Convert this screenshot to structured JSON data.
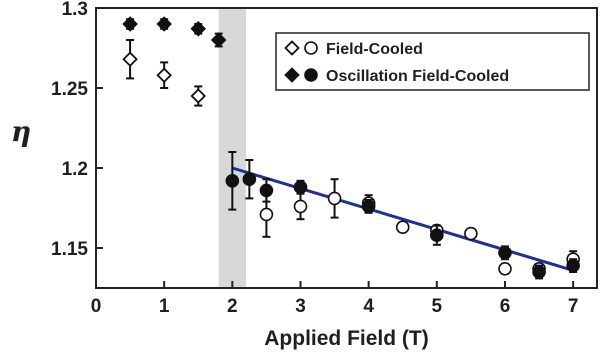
{
  "chart_data": {
    "type": "scatter",
    "xlabel": "Applied Field (T)",
    "ylabel": "η",
    "xlim": [
      0,
      7.35
    ],
    "ylim": [
      1.125,
      1.3
    ],
    "xticks": [
      0,
      1,
      2,
      3,
      4,
      5,
      6,
      7
    ],
    "yticks": [
      1.15,
      1.2,
      1.25,
      1.3
    ],
    "ytick_labels": [
      "1.15",
      "1.2",
      "1.25",
      "1.3"
    ],
    "xtick_labels": [
      "0",
      "1",
      "2",
      "3",
      "4",
      "5",
      "6",
      "7"
    ],
    "grid": false,
    "legend_position": "top-right",
    "shaded_band": {
      "x": [
        1.8,
        2.2
      ],
      "color": "#d8d8d8"
    },
    "fit_line": {
      "x": [
        2.0,
        7.0
      ],
      "y": [
        1.2,
        1.136
      ],
      "color": "#1c2f9e"
    },
    "series": [
      {
        "name": "Field-Cooled",
        "label": "Field-Cooled",
        "markers": [
          "open-diamond",
          "open-circle"
        ],
        "points": [
          {
            "x": 0.5,
            "y": 1.268,
            "err": 0.012,
            "marker": "open-diamond"
          },
          {
            "x": 1.0,
            "y": 1.258,
            "err": 0.008,
            "marker": "open-diamond"
          },
          {
            "x": 1.5,
            "y": 1.245,
            "err": 0.006,
            "marker": "open-diamond"
          },
          {
            "x": 2.5,
            "y": 1.171,
            "err": 0.014,
            "marker": "open-circle"
          },
          {
            "x": 3.0,
            "y": 1.176,
            "err": 0.008,
            "marker": "open-circle"
          },
          {
            "x": 3.5,
            "y": 1.181,
            "err": 0.012,
            "marker": "open-circle"
          },
          {
            "x": 4.0,
            "y": 1.178,
            "err": 0.005,
            "marker": "open-circle"
          },
          {
            "x": 4.5,
            "y": 1.163,
            "err": 0.003,
            "marker": "open-circle"
          },
          {
            "x": 5.0,
            "y": 1.161,
            "err": 0.003,
            "marker": "open-circle"
          },
          {
            "x": 5.5,
            "y": 1.159,
            "err": 0.002,
            "marker": "open-circle"
          },
          {
            "x": 6.0,
            "y": 1.137,
            "err": 0.003,
            "marker": "open-circle"
          },
          {
            "x": 6.5,
            "y": 1.137,
            "err": 0.003,
            "marker": "open-circle"
          },
          {
            "x": 7.0,
            "y": 1.143,
            "err": 0.005,
            "marker": "open-circle"
          }
        ]
      },
      {
        "name": "Oscillation Field-Cooled",
        "label": "Oscillation Field-Cooled",
        "markers": [
          "filled-diamond",
          "filled-circle"
        ],
        "points": [
          {
            "x": 0.5,
            "y": 1.29,
            "err": 0.003,
            "marker": "filled-diamond"
          },
          {
            "x": 1.0,
            "y": 1.29,
            "err": 0.003,
            "marker": "filled-diamond"
          },
          {
            "x": 1.5,
            "y": 1.287,
            "err": 0.003,
            "marker": "filled-diamond"
          },
          {
            "x": 1.8,
            "y": 1.28,
            "err": 0.004,
            "marker": "filled-diamond"
          },
          {
            "x": 2.0,
            "y": 1.192,
            "err": 0.018,
            "marker": "filled-circle"
          },
          {
            "x": 2.25,
            "y": 1.193,
            "err": 0.012,
            "marker": "filled-circle"
          },
          {
            "x": 2.5,
            "y": 1.186,
            "err": 0.007,
            "marker": "filled-circle"
          },
          {
            "x": 3.0,
            "y": 1.188,
            "err": 0.004,
            "marker": "filled-circle"
          },
          {
            "x": 4.0,
            "y": 1.176,
            "err": 0.004,
            "marker": "filled-circle"
          },
          {
            "x": 5.0,
            "y": 1.158,
            "err": 0.006,
            "marker": "filled-circle"
          },
          {
            "x": 6.0,
            "y": 1.147,
            "err": 0.004,
            "marker": "filled-circle"
          },
          {
            "x": 6.5,
            "y": 1.135,
            "err": 0.004,
            "marker": "filled-circle"
          },
          {
            "x": 7.0,
            "y": 1.139,
            "err": 0.004,
            "marker": "filled-circle"
          }
        ]
      }
    ]
  }
}
